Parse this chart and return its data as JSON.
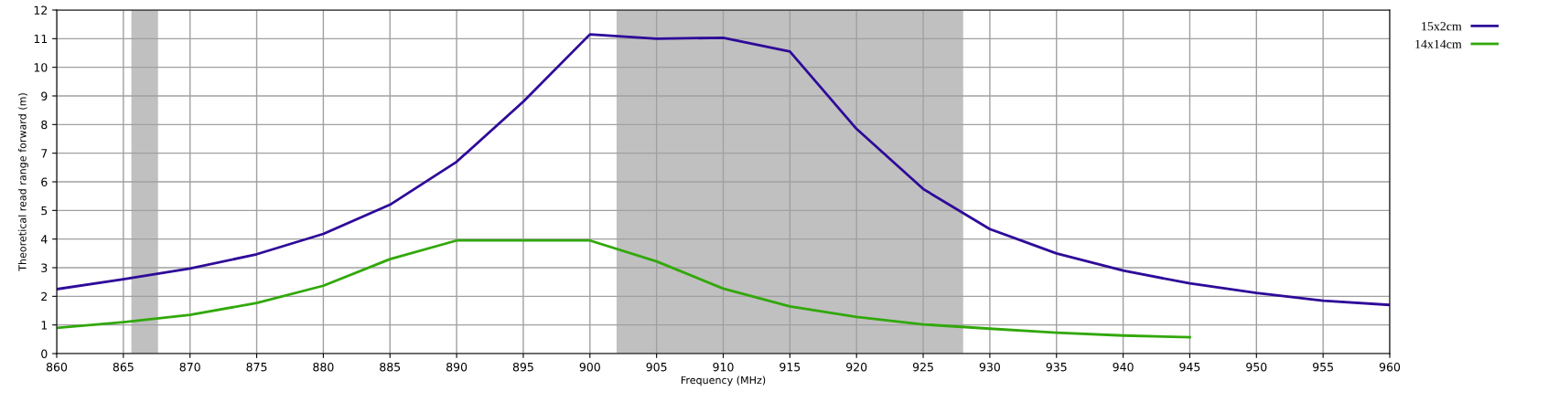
{
  "chart_data": {
    "type": "line",
    "xlabel": "Frequency (MHz)",
    "ylabel": "Theoretical read range forward (m)",
    "x": [
      860,
      865,
      870,
      875,
      880,
      885,
      890,
      895,
      900,
      905,
      910,
      915,
      920,
      925,
      930,
      935,
      940,
      945,
      950,
      955,
      960
    ],
    "series": [
      {
        "name": "15x2cm",
        "color": "#2e0a99",
        "values": [
          2.25,
          2.6,
          2.97,
          3.47,
          4.18,
          5.2,
          6.7,
          8.8,
          11.15,
          11.0,
          11.03,
          10.55,
          7.85,
          5.75,
          4.35,
          3.5,
          2.9,
          2.45,
          2.12,
          1.85,
          1.7
        ]
      },
      {
        "name": "14x14cm",
        "color": "#31a80a",
        "values": [
          0.9,
          1.1,
          1.35,
          1.77,
          2.37,
          3.3,
          3.95,
          3.95,
          3.95,
          3.22,
          2.27,
          1.65,
          1.28,
          1.02,
          0.87,
          0.73,
          0.63,
          0.57,
          null,
          null,
          null
        ]
      }
    ],
    "xlim": [
      860,
      960
    ],
    "xticks": [
      860,
      865,
      870,
      875,
      880,
      885,
      890,
      895,
      900,
      905,
      910,
      915,
      920,
      925,
      930,
      935,
      940,
      945,
      950,
      955,
      960
    ],
    "ylim": [
      0,
      12
    ],
    "yticks": [
      0,
      1,
      2,
      3,
      4,
      5,
      6,
      7,
      8,
      9,
      10,
      11,
      12
    ],
    "bands": [
      {
        "axis": "x",
        "from": 865.6,
        "to": 867.6,
        "color": "#c0c0c0"
      },
      {
        "axis": "x",
        "from": 902,
        "to": 928,
        "color": "#c0c0c0"
      }
    ],
    "grid": true,
    "legend": "top right",
    "marker": "none",
    "line_style": "solid"
  }
}
